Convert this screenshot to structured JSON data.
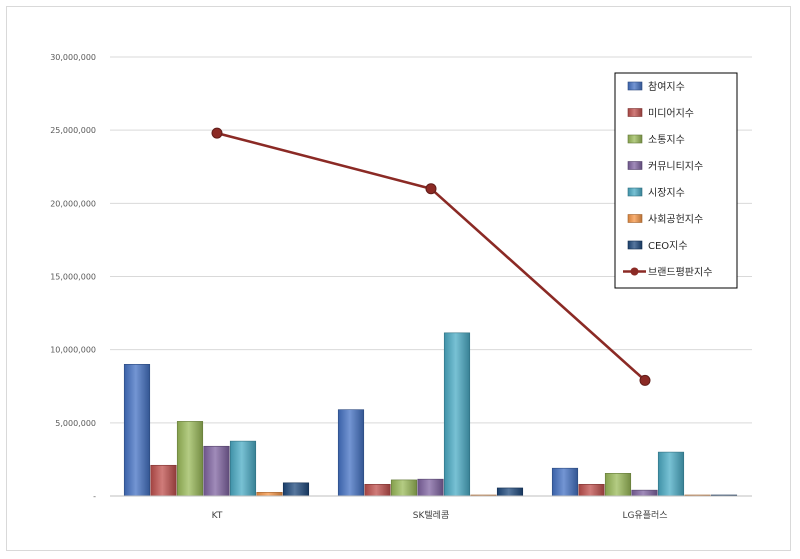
{
  "chart_data": {
    "type": "bar",
    "categories": [
      "KT",
      "SK텔레콤",
      "LG유플러스"
    ],
    "y_ticks": [
      "-",
      "5,000,000",
      "10,000,000",
      "15,000,000",
      "20,000,000",
      "25,000,000",
      "30,000,000"
    ],
    "ylim": [
      0,
      30000000
    ],
    "grid": true,
    "legend_position": "right",
    "series": [
      {
        "name": "참여지수",
        "color": "#4472c4",
        "values": [
          9000000,
          5900000,
          1900000
        ]
      },
      {
        "name": "미디어지수",
        "color": "#c0504d",
        "values": [
          2100000,
          800000,
          800000
        ]
      },
      {
        "name": "소통지수",
        "color": "#9bbb59",
        "values": [
          5100000,
          1100000,
          1550000
        ]
      },
      {
        "name": "커뮤니티지수",
        "color": "#8064a2",
        "values": [
          3400000,
          1150000,
          400000
        ]
      },
      {
        "name": "시장지수",
        "color": "#4bacc6",
        "values": [
          3750000,
          11150000,
          3000000
        ]
      },
      {
        "name": "사회공헌지수",
        "color": "#f79646",
        "values": [
          250000,
          50000,
          50000
        ]
      },
      {
        "name": "CEO지수",
        "color": "#1f497d",
        "values": [
          900000,
          550000,
          30000
        ]
      }
    ],
    "line_series": {
      "name": "브랜드평판지수",
      "color": "#8b2a25",
      "values": [
        24800000,
        21000000,
        7900000
      ]
    }
  }
}
